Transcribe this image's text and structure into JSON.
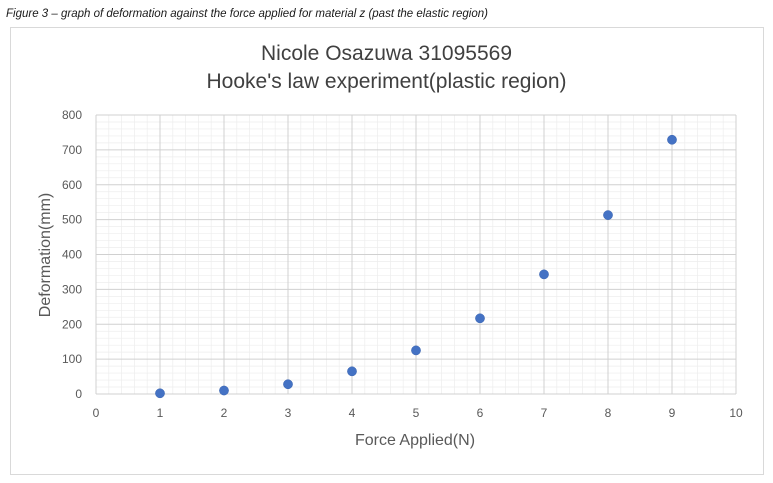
{
  "caption": "Figure 3 – graph of deformation against the force applied for material z (past the elastic region)",
  "chart_data": {
    "type": "scatter",
    "title_lines": [
      "Nicole Osazuwa 31095569",
      "Hooke's law experiment(plastic region)"
    ],
    "xlabel": "Force Applied(N)",
    "ylabel": "Deformation(mm)",
    "xlim": [
      0,
      10
    ],
    "ylim": [
      0,
      800
    ],
    "x_major_step": 1,
    "y_major_step": 100,
    "x_minor_step": 0.2,
    "y_minor_step": 20,
    "grid": true,
    "legend": "none",
    "x_ticks": [
      "0",
      "1",
      "2",
      "3",
      "4",
      "5",
      "6",
      "7",
      "8",
      "9",
      "10"
    ],
    "y_ticks": [
      "0",
      "100",
      "200",
      "300",
      "400",
      "500",
      "600",
      "700",
      "800"
    ],
    "series": [
      {
        "color": "#4472c4",
        "x": [
          1,
          2,
          3,
          4,
          5,
          6,
          7,
          8,
          9
        ],
        "y": [
          2,
          10,
          28,
          65,
          125,
          217,
          343,
          513,
          729
        ]
      }
    ]
  }
}
